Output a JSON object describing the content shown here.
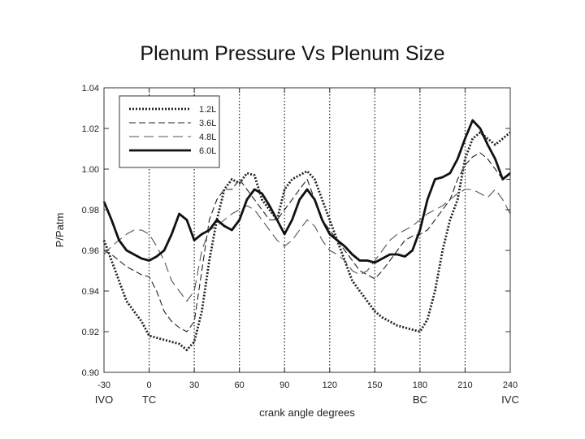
{
  "slide_title": "Plenum Pressure Vs Plenum Size",
  "chart_data": {
    "type": "line",
    "title": "",
    "xlabel": "crank angle degrees",
    "ylabel": "P/Patm",
    "xlim": [
      -30,
      240
    ],
    "ylim": [
      0.9,
      1.04
    ],
    "x_ticks": [
      -30,
      0,
      30,
      60,
      90,
      120,
      150,
      180,
      210,
      240
    ],
    "x_tick_labels": [
      "-30",
      "0",
      "30",
      "60",
      "90",
      "120",
      "150",
      "180",
      "210",
      "240"
    ],
    "y_ticks": [
      0.9,
      0.92,
      0.94,
      0.96,
      0.98,
      1.0,
      1.02,
      1.04
    ],
    "y_tick_labels": [
      "0.90",
      "0.92",
      "0.94",
      "0.96",
      "0.98",
      "1.00",
      "1.02",
      "1.04"
    ],
    "event_markers": [
      {
        "x": -30,
        "label": "IVO"
      },
      {
        "x": 0,
        "label": "TC"
      },
      {
        "x": 180,
        "label": "BC"
      },
      {
        "x": 240,
        "label": "IVC"
      }
    ],
    "vertical_dotted_lines_at": [
      0,
      30,
      60,
      90,
      120,
      150,
      180,
      210
    ],
    "grid": false,
    "legend_position": "top-left",
    "series": [
      {
        "name": "1.2L",
        "style": "dotted",
        "x": [
          -30,
          -25,
          -20,
          -15,
          -10,
          -5,
          0,
          5,
          10,
          15,
          20,
          25,
          30,
          35,
          40,
          45,
          50,
          55,
          60,
          65,
          70,
          75,
          80,
          85,
          90,
          95,
          100,
          105,
          110,
          115,
          120,
          125,
          130,
          135,
          140,
          145,
          150,
          155,
          160,
          165,
          170,
          175,
          180,
          185,
          190,
          195,
          200,
          205,
          210,
          215,
          220,
          225,
          230,
          235,
          240
        ],
        "y": [
          0.965,
          0.955,
          0.945,
          0.935,
          0.93,
          0.925,
          0.918,
          0.917,
          0.916,
          0.915,
          0.914,
          0.911,
          0.915,
          0.93,
          0.955,
          0.975,
          0.99,
          0.995,
          0.993,
          0.998,
          0.997,
          0.985,
          0.98,
          0.975,
          0.99,
          0.995,
          0.997,
          0.999,
          0.995,
          0.985,
          0.975,
          0.965,
          0.955,
          0.945,
          0.94,
          0.935,
          0.93,
          0.927,
          0.925,
          0.923,
          0.922,
          0.921,
          0.92,
          0.926,
          0.94,
          0.96,
          0.975,
          0.985,
          1.005,
          1.015,
          1.018,
          1.015,
          1.012,
          1.015,
          1.018
        ]
      },
      {
        "name": "3.6L",
        "style": "dashed",
        "x": [
          -30,
          -25,
          -20,
          -15,
          -10,
          -5,
          0,
          5,
          10,
          15,
          20,
          25,
          30,
          35,
          40,
          45,
          50,
          55,
          60,
          65,
          70,
          75,
          80,
          85,
          90,
          95,
          100,
          105,
          110,
          115,
          120,
          125,
          130,
          135,
          140,
          145,
          150,
          155,
          160,
          165,
          170,
          175,
          180,
          185,
          190,
          195,
          200,
          205,
          210,
          215,
          220,
          225,
          230,
          235,
          240
        ],
        "y": [
          0.96,
          0.958,
          0.955,
          0.952,
          0.95,
          0.948,
          0.947,
          0.94,
          0.93,
          0.925,
          0.922,
          0.92,
          0.925,
          0.95,
          0.975,
          0.985,
          0.99,
          0.99,
          0.995,
          0.99,
          0.985,
          0.98,
          0.975,
          0.975,
          0.98,
          0.985,
          0.99,
          0.995,
          0.985,
          0.975,
          0.97,
          0.965,
          0.96,
          0.955,
          0.95,
          0.948,
          0.946,
          0.95,
          0.955,
          0.96,
          0.965,
          0.967,
          0.968,
          0.97,
          0.975,
          0.98,
          0.985,
          0.995,
          1.002,
          1.006,
          1.008,
          1.005,
          1.0,
          0.995,
          0.995
        ]
      },
      {
        "name": "4.8L",
        "style": "longdash",
        "x": [
          -30,
          -25,
          -20,
          -15,
          -10,
          -5,
          0,
          5,
          10,
          15,
          20,
          25,
          30,
          35,
          40,
          45,
          50,
          55,
          60,
          65,
          70,
          75,
          80,
          85,
          90,
          95,
          100,
          105,
          110,
          115,
          120,
          125,
          130,
          135,
          140,
          145,
          150,
          155,
          160,
          165,
          170,
          175,
          180,
          185,
          190,
          195,
          200,
          205,
          210,
          215,
          220,
          225,
          230,
          235,
          240
        ],
        "y": [
          0.958,
          0.962,
          0.965,
          0.968,
          0.97,
          0.97,
          0.968,
          0.962,
          0.955,
          0.945,
          0.94,
          0.935,
          0.94,
          0.96,
          0.97,
          0.972,
          0.975,
          0.978,
          0.98,
          0.982,
          0.98,
          0.975,
          0.97,
          0.965,
          0.962,
          0.965,
          0.97,
          0.975,
          0.972,
          0.965,
          0.96,
          0.958,
          0.955,
          0.95,
          0.948,
          0.95,
          0.955,
          0.96,
          0.965,
          0.968,
          0.97,
          0.972,
          0.975,
          0.978,
          0.98,
          0.982,
          0.985,
          0.988,
          0.99,
          0.99,
          0.988,
          0.986,
          0.99,
          0.985,
          0.978
        ]
      },
      {
        "name": "6.0L",
        "style": "solid",
        "x": [
          -30,
          -25,
          -20,
          -15,
          -10,
          -5,
          0,
          5,
          10,
          15,
          20,
          25,
          30,
          35,
          40,
          45,
          50,
          55,
          60,
          65,
          70,
          75,
          80,
          85,
          90,
          95,
          100,
          105,
          110,
          115,
          120,
          125,
          130,
          135,
          140,
          145,
          150,
          155,
          160,
          165,
          170,
          175,
          180,
          185,
          190,
          195,
          200,
          205,
          210,
          215,
          220,
          225,
          230,
          235,
          240
        ],
        "y": [
          0.984,
          0.975,
          0.965,
          0.96,
          0.958,
          0.956,
          0.955,
          0.957,
          0.96,
          0.968,
          0.978,
          0.975,
          0.965,
          0.968,
          0.97,
          0.975,
          0.972,
          0.97,
          0.975,
          0.985,
          0.99,
          0.988,
          0.982,
          0.975,
          0.968,
          0.975,
          0.985,
          0.99,
          0.985,
          0.975,
          0.968,
          0.965,
          0.962,
          0.958,
          0.955,
          0.955,
          0.954,
          0.956,
          0.958,
          0.958,
          0.957,
          0.96,
          0.97,
          0.985,
          0.995,
          0.996,
          0.998,
          1.005,
          1.015,
          1.024,
          1.02,
          1.012,
          1.005,
          0.995,
          0.998
        ]
      }
    ]
  }
}
